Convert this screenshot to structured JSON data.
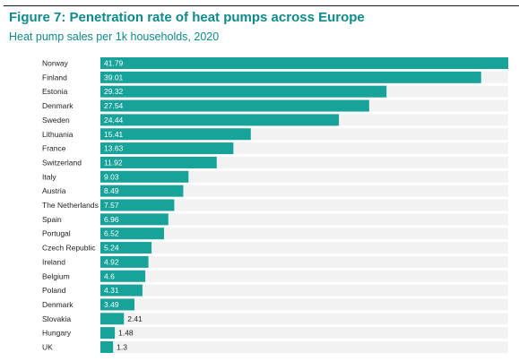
{
  "header": {
    "title": "Figure 7: Penetration rate of heat pumps across Europe",
    "subtitle": "Heat pump sales per 1k households, 2020"
  },
  "colors": {
    "bar": "#17a29a",
    "track": "#f2f2f2",
    "title": "#0f8a8a",
    "label_inside": "#ffffff",
    "label_outside": "#222222"
  },
  "chart_data": {
    "type": "bar",
    "orientation": "horizontal",
    "title": "Figure 7: Penetration rate of heat pumps across Europe",
    "subtitle": "Heat pump sales per 1k households, 2020",
    "xlabel": "",
    "ylabel": "",
    "xlim": [
      0,
      41.79
    ],
    "grid": false,
    "legend": "none",
    "categories": [
      "Norway",
      "Finland",
      "Estonia",
      "Denmark",
      "Sweden",
      "Lithuania",
      "France",
      "Switzerland",
      "Italy",
      "Austria",
      "The Netherlands",
      "Spain",
      "Portugal",
      "Czech Republic",
      "Ireland",
      "Belgium",
      "Poland",
      "Denmark",
      "Slovakia",
      "Hungary",
      "UK"
    ],
    "values": [
      41.79,
      39.01,
      29.32,
      27.54,
      24.44,
      15.41,
      13.63,
      11.92,
      9.03,
      8.49,
      7.57,
      6.96,
      6.52,
      5.24,
      4.92,
      4.6,
      4.31,
      3.49,
      2.41,
      1.48,
      1.3
    ],
    "value_labels": [
      "41.79",
      "39.01",
      "29.32",
      "27.54",
      "24.44",
      "15.41",
      "13.63",
      "11.92",
      "9.03",
      "8.49",
      "7.57",
      "6.96",
      "6.52",
      "5.24",
      "4.92",
      "4.6",
      "4.31",
      "3.49",
      "2.41",
      "1.48",
      "1.3"
    ]
  }
}
